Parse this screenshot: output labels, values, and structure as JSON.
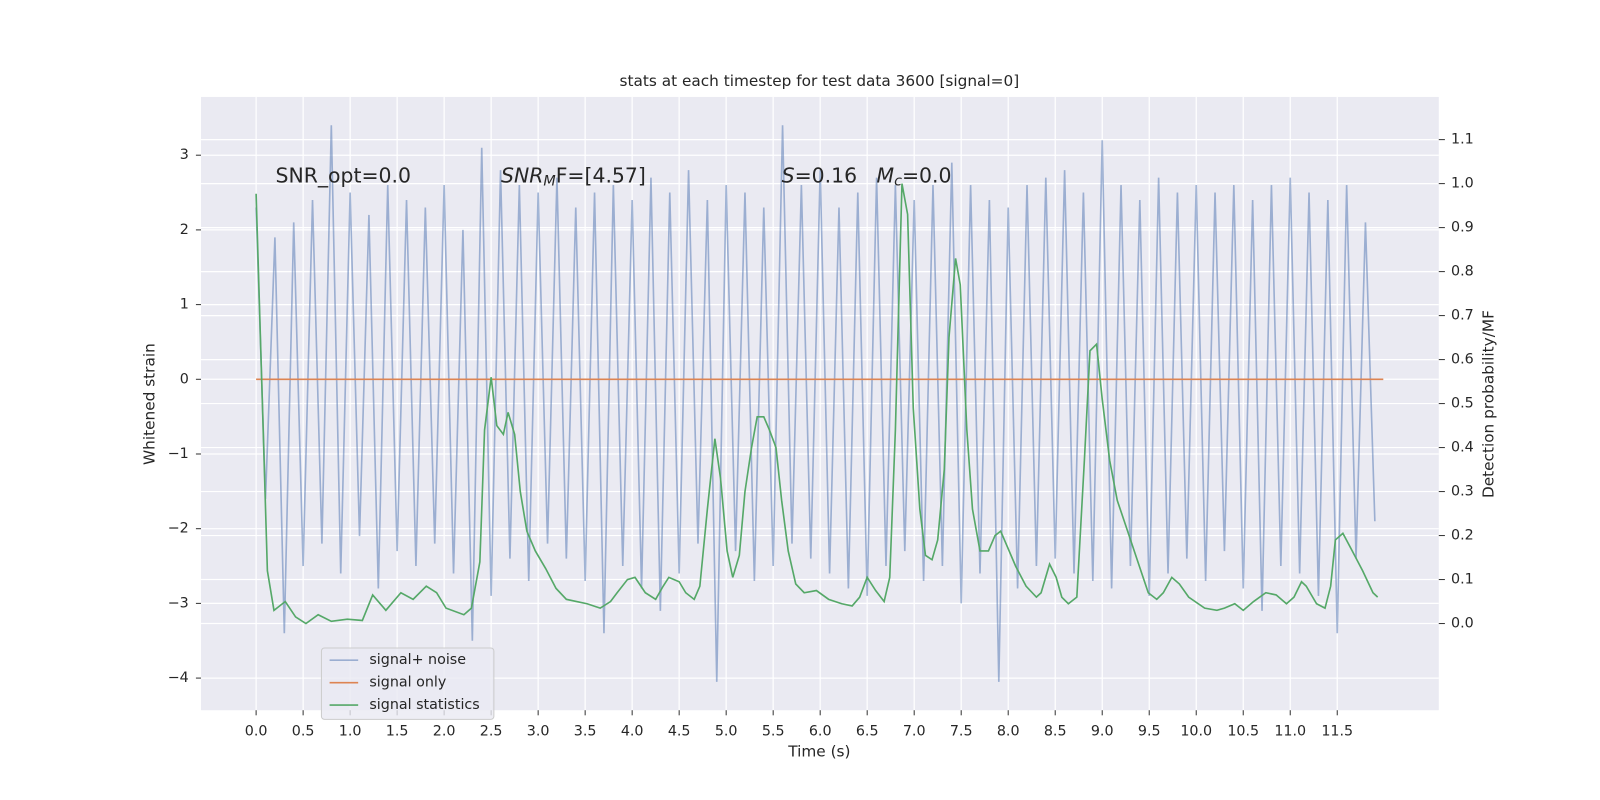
{
  "chart_data": {
    "type": "line",
    "title": "stats at each timestep for test data 3600 [signal=0]",
    "xlabel": "Time (s)",
    "ylabel": "Whitened strain",
    "y2label": "Detection probability/MF",
    "grid": true,
    "legend": "lower left",
    "xlim": [
      -0.586,
      12.58
    ],
    "ylim": [
      -4.43,
      3.78
    ],
    "y2lim": [
      -0.197,
      1.197
    ],
    "xticks": [
      {
        "value": 0,
        "label": "0.0"
      },
      {
        "value": 0.5,
        "label": "0.5"
      },
      {
        "value": 1,
        "label": "1.0"
      },
      {
        "value": 1.5,
        "label": "1.5"
      },
      {
        "value": 2,
        "label": "2.0"
      },
      {
        "value": 2.5,
        "label": "2.5"
      },
      {
        "value": 3,
        "label": "3.0"
      },
      {
        "value": 3.5,
        "label": "3.5"
      },
      {
        "value": 4,
        "label": "4.0"
      },
      {
        "value": 4.5,
        "label": "4.5"
      },
      {
        "value": 5,
        "label": "5.0"
      },
      {
        "value": 5.5,
        "label": "5.5"
      },
      {
        "value": 6,
        "label": "6.0"
      },
      {
        "value": 6.5,
        "label": "6.5"
      },
      {
        "value": 7,
        "label": "7.0"
      },
      {
        "value": 7.5,
        "label": "7.5"
      },
      {
        "value": 8,
        "label": "8.0"
      },
      {
        "value": 8.5,
        "label": "8.5"
      },
      {
        "value": 9,
        "label": "9.0"
      },
      {
        "value": 9.5,
        "label": "9.5"
      },
      {
        "value": 10,
        "label": "10.0"
      },
      {
        "value": 10.5,
        "label": "10.5"
      },
      {
        "value": 11,
        "label": "11.0"
      },
      {
        "value": 11.5,
        "label": "11.5"
      }
    ],
    "yticks": [
      {
        "value": -4,
        "label": "−4"
      },
      {
        "value": -3,
        "label": "−3"
      },
      {
        "value": -2,
        "label": "−2"
      },
      {
        "value": -1,
        "label": "−1"
      },
      0,
      1,
      2,
      3
    ],
    "y2ticks": [
      {
        "value": 0,
        "label": "0.0"
      },
      {
        "value": 0.1,
        "label": "0.1"
      },
      {
        "value": 0.2,
        "label": "0.2"
      },
      {
        "value": 0.3,
        "label": "0.3"
      },
      {
        "value": 0.4,
        "label": "0.4"
      },
      {
        "value": 0.5,
        "label": "0.5"
      },
      {
        "value": 0.6,
        "label": "0.6"
      },
      {
        "value": 0.7,
        "label": "0.7"
      },
      {
        "value": 0.8,
        "label": "0.8"
      },
      {
        "value": 0.9,
        "label": "0.9"
      },
      {
        "value": 1,
        "label": "1.0"
      },
      {
        "value": 1.1,
        "label": "1.1"
      }
    ],
    "annotations": [
      {
        "text": "SNR_opt=0.0"
      },
      {
        "math": "SNR",
        "sub": "M",
        "text": "F=[4.57]"
      },
      {
        "math": "S",
        "text": "=0.16"
      },
      {
        "math": "M",
        "sub": "c",
        "text": "=0.0"
      }
    ],
    "series": [
      {
        "name": "signal+ noise",
        "color": "#4c72b0",
        "opacity": 0.5,
        "x": [
          0,
          0.1,
          0.2,
          0.3,
          0.4,
          0.5,
          0.6,
          0.7,
          0.8,
          0.9,
          1,
          1.1,
          1.2,
          1.3,
          1.4,
          1.5,
          1.6,
          1.7,
          1.8,
          1.9,
          2,
          2.1,
          2.2,
          2.3,
          2.4,
          2.5,
          2.6,
          2.7,
          2.8,
          2.9,
          3,
          3.1,
          3.2,
          3.3,
          3.4,
          3.5,
          3.6,
          3.7,
          3.8,
          3.9,
          4,
          4.1,
          4.2,
          4.3,
          4.4,
          4.5,
          4.6,
          4.7,
          4.8,
          4.9,
          5,
          5.1,
          5.2,
          5.3,
          5.4,
          5.5,
          5.6,
          5.7,
          5.8,
          5.9,
          6,
          6.1,
          6.2,
          6.3,
          6.4,
          6.5,
          6.6,
          6.7,
          6.8,
          6.9,
          7,
          7.1,
          7.2,
          7.3,
          7.4,
          7.5,
          7.6,
          7.7,
          7.8,
          7.9,
          8,
          8.1,
          8.2,
          8.3,
          8.4,
          8.5,
          8.6,
          8.7,
          8.8,
          8.9,
          9,
          9.1,
          9.2,
          9.3,
          9.4,
          9.5,
          9.6,
          9.7,
          9.8,
          9.9,
          10,
          10.1,
          10.2,
          10.3,
          10.4,
          10.5,
          10.6,
          10.7,
          10.8,
          10.9,
          11,
          11.1,
          11.2,
          11.3,
          11.4,
          11.5,
          11.6,
          11.7,
          11.8,
          11.9
        ],
        "values": [
          2.3,
          -1.6,
          1.9,
          -3.4,
          2.1,
          -2.5,
          2.4,
          -2.2,
          3.4,
          -2.6,
          2.5,
          -2.1,
          2.2,
          -2.8,
          2.6,
          -2.3,
          2.4,
          -2.5,
          2.3,
          -2.2,
          2.6,
          -2.6,
          2.0,
          -3.5,
          3.1,
          -2.9,
          2.8,
          -2.4,
          2.6,
          -2.7,
          2.5,
          -2.2,
          2.7,
          -2.4,
          2.3,
          -2.7,
          2.5,
          -3.4,
          2.6,
          -2.5,
          2.4,
          -2.8,
          2.7,
          -3.1,
          2.5,
          -2.6,
          2.8,
          -2.2,
          2.4,
          -4.05,
          2.6,
          -2.3,
          2.5,
          -2.7,
          2.3,
          -2.5,
          3.4,
          -2.2,
          2.6,
          -2.4,
          2.8,
          -2.6,
          2.3,
          -2.8,
          2.5,
          -2.9,
          2.7,
          -2.5,
          2.6,
          -2.3,
          2.4,
          -2.7,
          2.6,
          -2.5,
          2.9,
          -3.0,
          2.6,
          -2.6,
          2.4,
          -4.05,
          2.3,
          -2.8,
          2.6,
          -2.5,
          2.7,
          -2.4,
          2.8,
          -2.6,
          2.5,
          -2.7,
          3.2,
          -2.8,
          2.6,
          -2.5,
          2.4,
          -2.9,
          2.7,
          -2.6,
          2.5,
          -2.4,
          2.6,
          -2.7,
          2.5,
          -2.3,
          2.6,
          -2.8,
          2.4,
          -3.1,
          2.6,
          -2.5,
          2.7,
          -2.6,
          2.5,
          -2.9,
          2.4,
          -3.4,
          2.6,
          -2.4,
          2.1,
          -1.9
        ]
      },
      {
        "name": "signal only",
        "color": "#dd8452",
        "opacity": 1,
        "x": [
          0,
          11.99
        ],
        "values": [
          0,
          0
        ]
      },
      {
        "name": "signal statistics",
        "color": "#55a868",
        "opacity": 1,
        "axis": "y2",
        "x": [
          0,
          0.12,
          0.19,
          0.31,
          0.42,
          0.53,
          0.66,
          0.8,
          0.97,
          1.13,
          1.24,
          1.38,
          1.54,
          1.67,
          1.81,
          1.92,
          2.02,
          2.21,
          2.29,
          2.38,
          2.43,
          2.5,
          2.56,
          2.63,
          2.68,
          2.75,
          2.81,
          2.88,
          2.97,
          3.08,
          3.19,
          3.3,
          3.41,
          3.52,
          3.66,
          3.77,
          3.84,
          3.95,
          4.03,
          4.14,
          4.25,
          4.33,
          4.39,
          4.5,
          4.57,
          4.66,
          4.72,
          4.8,
          4.88,
          4.94,
          5.01,
          5.07,
          5.14,
          5.2,
          5.27,
          5.33,
          5.4,
          5.46,
          5.53,
          5.59,
          5.66,
          5.74,
          5.83,
          5.96,
          6.09,
          6.23,
          6.34,
          6.42,
          6.5,
          6.59,
          6.68,
          6.74,
          6.8,
          6.87,
          6.93,
          6.99,
          7.06,
          7.12,
          7.19,
          7.25,
          7.32,
          7.37,
          7.44,
          7.49,
          7.56,
          7.62,
          7.7,
          7.79,
          7.86,
          7.92,
          7.99,
          8.08,
          8.19,
          8.3,
          8.35,
          8.44,
          8.51,
          8.57,
          8.64,
          8.73,
          8.81,
          8.87,
          8.94,
          9.0,
          9.08,
          9.16,
          9.27,
          9.38,
          9.49,
          9.58,
          9.65,
          9.74,
          9.82,
          9.92,
          10.09,
          10.22,
          10.3,
          10.41,
          10.5,
          10.61,
          10.74,
          10.85,
          10.96,
          11.04,
          11.12,
          11.17,
          11.28,
          11.37,
          11.43,
          11.48,
          11.56,
          11.66,
          11.77,
          11.88,
          11.93
        ],
        "values": [
          0.977,
          0.12,
          0.03,
          0.05,
          0.015,
          0.0,
          0.02,
          0.005,
          0.01,
          0.007,
          0.065,
          0.03,
          0.07,
          0.055,
          0.085,
          0.07,
          0.035,
          0.02,
          0.035,
          0.14,
          0.44,
          0.56,
          0.45,
          0.43,
          0.48,
          0.43,
          0.3,
          0.21,
          0.165,
          0.125,
          0.08,
          0.055,
          0.05,
          0.045,
          0.035,
          0.05,
          0.07,
          0.1,
          0.105,
          0.07,
          0.055,
          0.085,
          0.105,
          0.095,
          0.07,
          0.055,
          0.085,
          0.26,
          0.42,
          0.33,
          0.165,
          0.105,
          0.155,
          0.3,
          0.4,
          0.47,
          0.47,
          0.44,
          0.4,
          0.28,
          0.165,
          0.09,
          0.07,
          0.075,
          0.055,
          0.045,
          0.04,
          0.06,
          0.105,
          0.075,
          0.05,
          0.105,
          0.44,
          1.0,
          0.93,
          0.49,
          0.26,
          0.155,
          0.145,
          0.19,
          0.35,
          0.65,
          0.83,
          0.77,
          0.44,
          0.26,
          0.165,
          0.165,
          0.2,
          0.21,
          0.175,
          0.13,
          0.085,
          0.06,
          0.07,
          0.135,
          0.105,
          0.06,
          0.045,
          0.06,
          0.37,
          0.62,
          0.635,
          0.51,
          0.37,
          0.28,
          0.21,
          0.14,
          0.07,
          0.055,
          0.07,
          0.105,
          0.09,
          0.06,
          0.035,
          0.03,
          0.035,
          0.045,
          0.03,
          0.05,
          0.07,
          0.065,
          0.045,
          0.06,
          0.095,
          0.085,
          0.045,
          0.035,
          0.085,
          0.19,
          0.205,
          0.165,
          0.12,
          0.07,
          0.06
        ]
      }
    ]
  }
}
